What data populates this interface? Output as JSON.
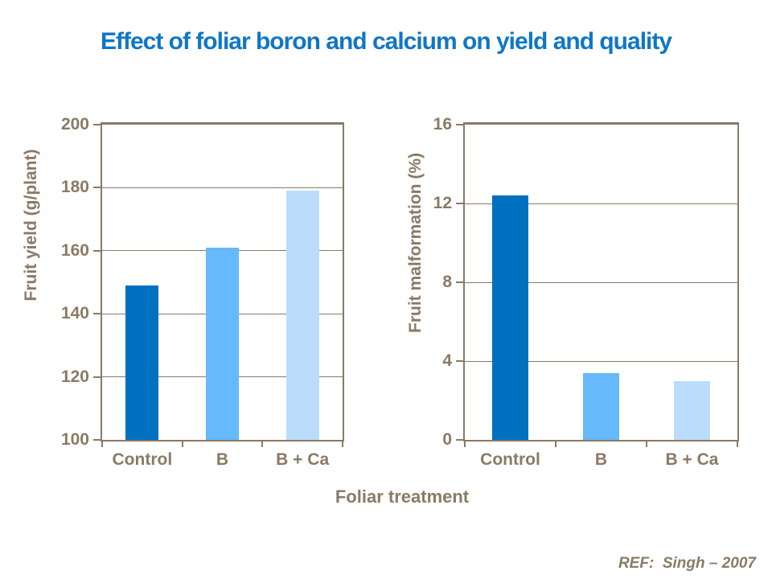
{
  "slide": {
    "title": "Effect of foliar boron and calcium on yield and quality",
    "reference": "REF:  Singh – 2007"
  },
  "colors": {
    "title_text": "#1076C5",
    "axis_text": "#8A7A64",
    "gridline": "#8A7A64",
    "background": "#FFFFFF",
    "bar_control": "#0070C0",
    "bar_b": "#66B9FA",
    "bar_b_ca": "#BBDDFB"
  },
  "chart_data": [
    {
      "type": "bar",
      "title": "",
      "xlabel": "Foliar treatment",
      "ylabel": "Fruit yield (g/plant)",
      "categories": [
        "Control",
        "B",
        "B + Ca"
      ],
      "values": [
        149,
        161,
        179
      ],
      "ylim": [
        100,
        200
      ],
      "ytick_step": 20,
      "grid": true,
      "legend": false,
      "bar_colors": [
        "#0070C0",
        "#66B9FA",
        "#BBDDFB"
      ]
    },
    {
      "type": "bar",
      "title": "",
      "xlabel": "",
      "ylabel": "Fruit malformation (%)",
      "categories": [
        "Control",
        "B",
        "B + Ca"
      ],
      "values": [
        12.4,
        3.4,
        3.0
      ],
      "ylim": [
        0,
        16
      ],
      "ytick_step": 4,
      "grid": true,
      "legend": false,
      "bar_colors": [
        "#0070C0",
        "#66B9FA",
        "#BBDDFB"
      ]
    }
  ]
}
